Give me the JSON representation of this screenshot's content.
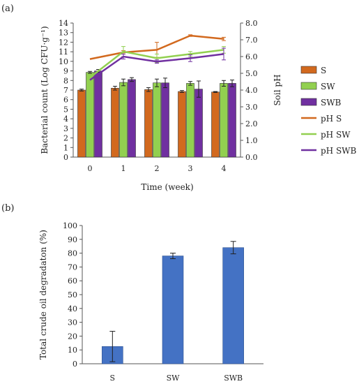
{
  "chart_data": [
    {
      "panel": "(a)",
      "type": "bar+line",
      "categories": [
        "0",
        "1",
        "2",
        "3",
        "4"
      ],
      "xlabel": "Time (week)",
      "ylabel_left": "Bacterial count (Log CFU·g⁻¹)",
      "ylabel_right": "Soil pH",
      "ylim_left": [
        0,
        14
      ],
      "left_ticks": [
        "0",
        "1",
        "2",
        "3",
        "4",
        "5",
        "6",
        "7",
        "8",
        "9",
        "10",
        "11",
        "12",
        "13",
        "14"
      ],
      "ylim_right": [
        0,
        8
      ],
      "right_ticks": [
        "0.0",
        "1.0",
        "2.0",
        "3.0",
        "4.0",
        "5.0",
        "6.0",
        "7.0",
        "8.0"
      ],
      "bar_series": [
        {
          "name": "S",
          "color": "#D2691E",
          "values": [
            7.0,
            7.2,
            7.05,
            6.85,
            6.8
          ],
          "errors": [
            0.1,
            0.2,
            0.2,
            0.1,
            0.05
          ]
        },
        {
          "name": "SW",
          "color": "#92D050",
          "values": [
            8.85,
            7.8,
            7.75,
            7.7,
            7.7
          ],
          "errors": [
            0.1,
            0.35,
            0.4,
            0.2,
            0.3
          ]
        },
        {
          "name": "SWB",
          "color": "#7030A0",
          "values": [
            9.0,
            8.1,
            7.75,
            7.1,
            7.7
          ],
          "errors": [
            0.15,
            0.2,
            0.5,
            0.85,
            0.35
          ]
        }
      ],
      "line_series": [
        {
          "name": "pH S",
          "color": "#D2691E",
          "values": [
            5.85,
            6.25,
            6.4,
            7.25,
            7.05
          ],
          "errors": [
            0,
            0.1,
            0.45,
            0.05,
            0.1
          ]
        },
        {
          "name": "pH SW",
          "color": "#92D050",
          "values": [
            4.75,
            6.3,
            5.9,
            6.15,
            6.4
          ],
          "errors": [
            0,
            0.3,
            0.25,
            0.15,
            0.2
          ]
        },
        {
          "name": "pH SWB",
          "color": "#7030A0",
          "values": [
            4.6,
            6.0,
            5.7,
            5.9,
            6.15
          ],
          "errors": [
            0,
            0.15,
            0.1,
            0.2,
            0.35
          ]
        }
      ],
      "legend": "right"
    },
    {
      "panel": "(b)",
      "type": "bar",
      "categories": [
        "S",
        "SW",
        "SWB"
      ],
      "values": [
        12.5,
        78,
        84
      ],
      "errors": [
        11,
        2,
        4.5
      ],
      "color": "#4472C4",
      "ylabel": "Total crude oil degradaton (%)",
      "ylim": [
        0,
        100
      ],
      "ticks": [
        "0",
        "10",
        "20",
        "30",
        "40",
        "50",
        "60",
        "70",
        "80",
        "90",
        "100"
      ]
    }
  ]
}
